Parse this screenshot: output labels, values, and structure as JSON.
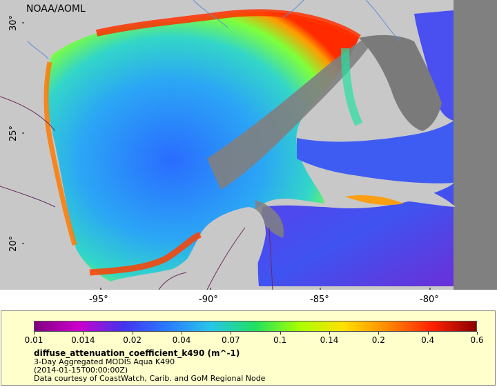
{
  "map": {
    "credit": "NOAA/AOML",
    "lon_ticks": [
      "-95°",
      "-90°",
      "-85°",
      "-80°"
    ],
    "lat_ticks": [
      "30°",
      "25°",
      "20°"
    ],
    "lon_range": [
      -98,
      -78
    ],
    "lat_range": [
      18,
      31
    ],
    "colors": {
      "land": "#c8c8c8",
      "no_data": "#808080",
      "coast_line": "#6a2a5a",
      "river": "#5b8fd6"
    }
  },
  "legend": {
    "tick_values": [
      "0.01",
      "0.014",
      "0.02",
      "0.04",
      "0.07",
      "0.1",
      "0.14",
      "0.2",
      "0.4",
      "0.6"
    ],
    "scale": "log",
    "gradient": [
      "#800080",
      "#cc00cc",
      "#4433ee",
      "#2a7bff",
      "#27c7e8",
      "#20e060",
      "#a8ff00",
      "#ffe000",
      "#ff8800",
      "#ff2200",
      "#8b0000"
    ],
    "variable": "diffuse_attenuation_coefficient_k490 (m^-1)",
    "description": "3-Day Aggregated MODIS Aqua K490",
    "time": "(2014-01-15T00:00:00Z)",
    "courtesy": "Data courtesy of CoastWatch, Carib. and GoM Regional Node"
  }
}
